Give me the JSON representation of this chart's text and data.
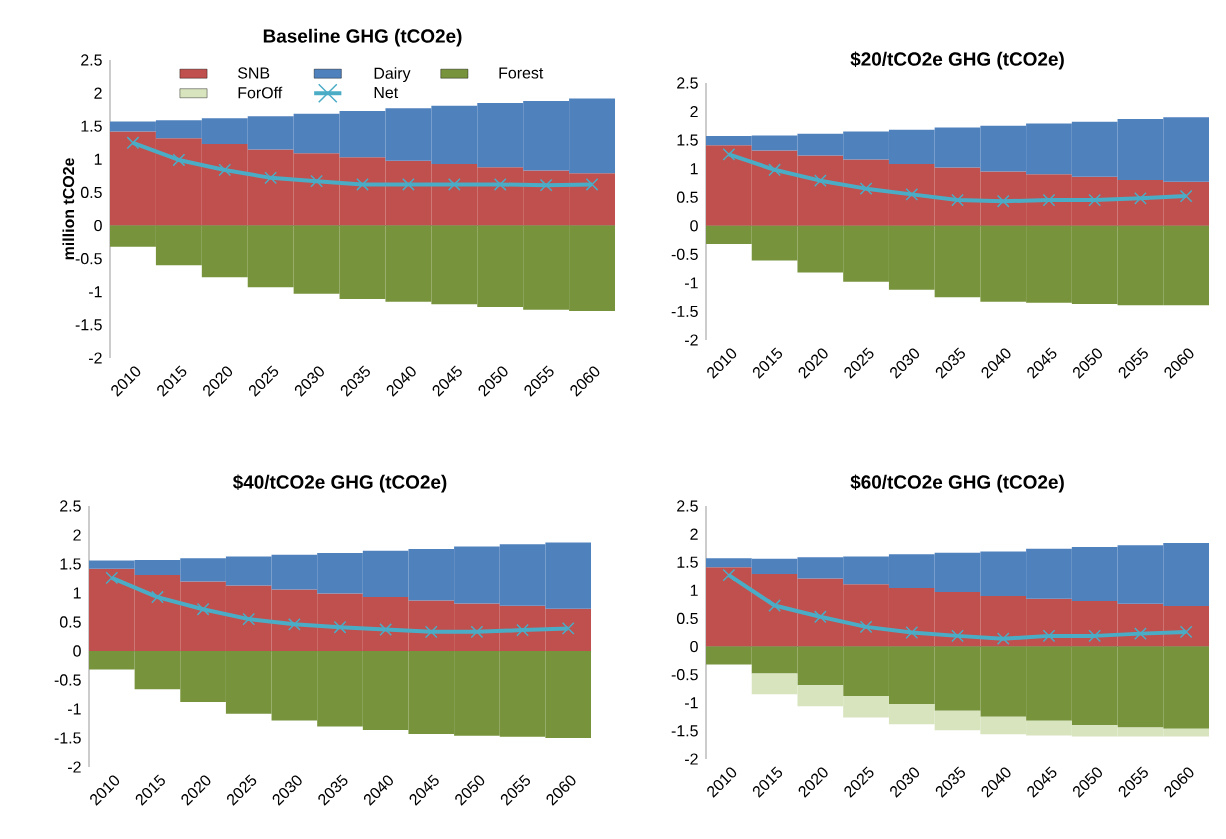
{
  "chart_data": [
    {
      "type": "bar",
      "title": "Baseline GHG (tCO2e)",
      "ylabel": "million tCO2e",
      "stacked": true,
      "legend": "top",
      "ylim": [
        -2,
        2.5
      ],
      "yticks": [
        -2,
        -1.5,
        -1,
        -0.5,
        0,
        0.5,
        1,
        1.5,
        2,
        2.5
      ],
      "categories": [
        "2010",
        "2015",
        "2020",
        "2025",
        "2030",
        "2035",
        "2040",
        "2045",
        "2050",
        "2055",
        "2060"
      ],
      "series": [
        {
          "name": "SNB",
          "color": "#c0504d",
          "values": [
            1.42,
            1.32,
            1.23,
            1.15,
            1.09,
            1.03,
            0.98,
            0.93,
            0.88,
            0.83,
            0.79
          ]
        },
        {
          "name": "Dairy",
          "color": "#4f81bd",
          "values": [
            0.15,
            0.27,
            0.39,
            0.5,
            0.6,
            0.7,
            0.79,
            0.88,
            0.97,
            1.05,
            1.13
          ]
        },
        {
          "name": "Forest",
          "color": "#77933c",
          "values": [
            -0.32,
            -0.6,
            -0.78,
            -0.93,
            -1.03,
            -1.11,
            -1.15,
            -1.19,
            -1.23,
            -1.27,
            -1.29
          ]
        },
        {
          "name": "ForOff",
          "color": "#d7e4bd",
          "values": [
            null,
            null,
            null,
            null,
            null,
            null,
            null,
            null,
            null,
            null,
            null
          ]
        },
        {
          "name": "Net",
          "type": "line",
          "color": "#4bacc6",
          "marker": "cross",
          "line_style": "solid",
          "values": [
            1.25,
            0.99,
            0.84,
            0.72,
            0.67,
            0.62,
            0.62,
            0.62,
            0.62,
            0.61,
            0.62
          ]
        }
      ]
    },
    {
      "type": "bar",
      "title": "$20/tCO2e GHG (tCO2e)",
      "stacked": true,
      "ylim": [
        -2,
        2.5
      ],
      "yticks": [
        -2,
        -1.5,
        -1,
        -0.5,
        0,
        0.5,
        1,
        1.5,
        2,
        2.5
      ],
      "categories": [
        "2010",
        "2015",
        "2020",
        "2025",
        "2030",
        "2035",
        "2040",
        "2045",
        "2050",
        "2055",
        "2060"
      ],
      "series": [
        {
          "color": "#c0504d",
          "values": [
            1.41,
            1.32,
            1.23,
            1.16,
            1.08,
            1.02,
            0.95,
            0.9,
            0.86,
            0.8,
            0.77
          ]
        },
        {
          "color": "#4f81bd",
          "values": [
            0.16,
            0.26,
            0.38,
            0.49,
            0.6,
            0.7,
            0.8,
            0.89,
            0.96,
            1.07,
            1.13
          ]
        },
        {
          "color": "#77933c",
          "values": [
            -0.32,
            -0.61,
            -0.82,
            -0.98,
            -1.12,
            -1.25,
            -1.33,
            -1.35,
            -1.37,
            -1.39,
            -1.39
          ]
        },
        {
          "type": "line",
          "color": "#4bacc6",
          "marker": "cross",
          "line_style": "solid",
          "values": [
            1.25,
            0.98,
            0.79,
            0.65,
            0.55,
            0.45,
            0.43,
            0.45,
            0.45,
            0.48,
            0.52
          ]
        }
      ]
    },
    {
      "type": "bar",
      "title": "$40/tCO2e GHG (tCO2e)",
      "stacked": true,
      "ylim": [
        -2,
        2.5
      ],
      "yticks": [
        -2,
        -1.5,
        -1,
        -0.5,
        0,
        0.5,
        1,
        1.5,
        2,
        2.5
      ],
      "categories": [
        "2010",
        "2015",
        "2020",
        "2025",
        "2030",
        "2035",
        "2040",
        "2045",
        "2050",
        "2055",
        "2060"
      ],
      "series": [
        {
          "color": "#c0504d",
          "values": [
            1.42,
            1.31,
            1.2,
            1.13,
            1.06,
            0.99,
            0.93,
            0.87,
            0.82,
            0.78,
            0.73
          ]
        },
        {
          "color": "#4f81bd",
          "values": [
            0.14,
            0.26,
            0.4,
            0.5,
            0.6,
            0.7,
            0.8,
            0.89,
            0.98,
            1.06,
            1.14
          ]
        },
        {
          "color": "#77933c",
          "values": [
            -0.32,
            -0.66,
            -0.88,
            -1.08,
            -1.2,
            -1.3,
            -1.36,
            -1.43,
            -1.46,
            -1.48,
            -1.5
          ]
        },
        {
          "type": "line",
          "color": "#4bacc6",
          "marker": "cross",
          "line_style": "solid",
          "values": [
            1.26,
            0.93,
            0.72,
            0.55,
            0.46,
            0.41,
            0.37,
            0.33,
            0.33,
            0.36,
            0.39
          ]
        }
      ]
    },
    {
      "type": "bar",
      "title": "$60/tCO2e GHG (tCO2e)",
      "stacked": true,
      "ylim": [
        -2,
        2.5
      ],
      "yticks": [
        -2,
        -1.5,
        -1,
        -0.5,
        0,
        0.5,
        1,
        1.5,
        2,
        2.5
      ],
      "categories": [
        "2010",
        "2015",
        "2020",
        "2025",
        "2030",
        "2035",
        "2040",
        "2045",
        "2050",
        "2055",
        "2060"
      ],
      "series": [
        {
          "color": "#c0504d",
          "values": [
            1.41,
            1.29,
            1.21,
            1.11,
            1.04,
            0.97,
            0.9,
            0.85,
            0.81,
            0.76,
            0.72
          ]
        },
        {
          "color": "#4f81bd",
          "values": [
            0.16,
            0.27,
            0.38,
            0.49,
            0.6,
            0.7,
            0.79,
            0.89,
            0.96,
            1.04,
            1.12
          ]
        },
        {
          "color": "#77933c",
          "values": [
            -0.32,
            -0.48,
            -0.69,
            -0.88,
            -1.02,
            -1.14,
            -1.25,
            -1.32,
            -1.4,
            -1.44,
            -1.46
          ]
        },
        {
          "color": "#d7e4bd",
          "values": [
            0,
            -0.37,
            -0.37,
            -0.38,
            -0.36,
            -0.35,
            -0.31,
            -0.26,
            -0.2,
            -0.16,
            -0.14
          ]
        },
        {
          "type": "line",
          "color": "#4bacc6",
          "marker": "cross",
          "line_style": "solid",
          "values": [
            1.27,
            0.73,
            0.53,
            0.35,
            0.25,
            0.19,
            0.14,
            0.19,
            0.19,
            0.23,
            0.26
          ]
        }
      ]
    }
  ]
}
